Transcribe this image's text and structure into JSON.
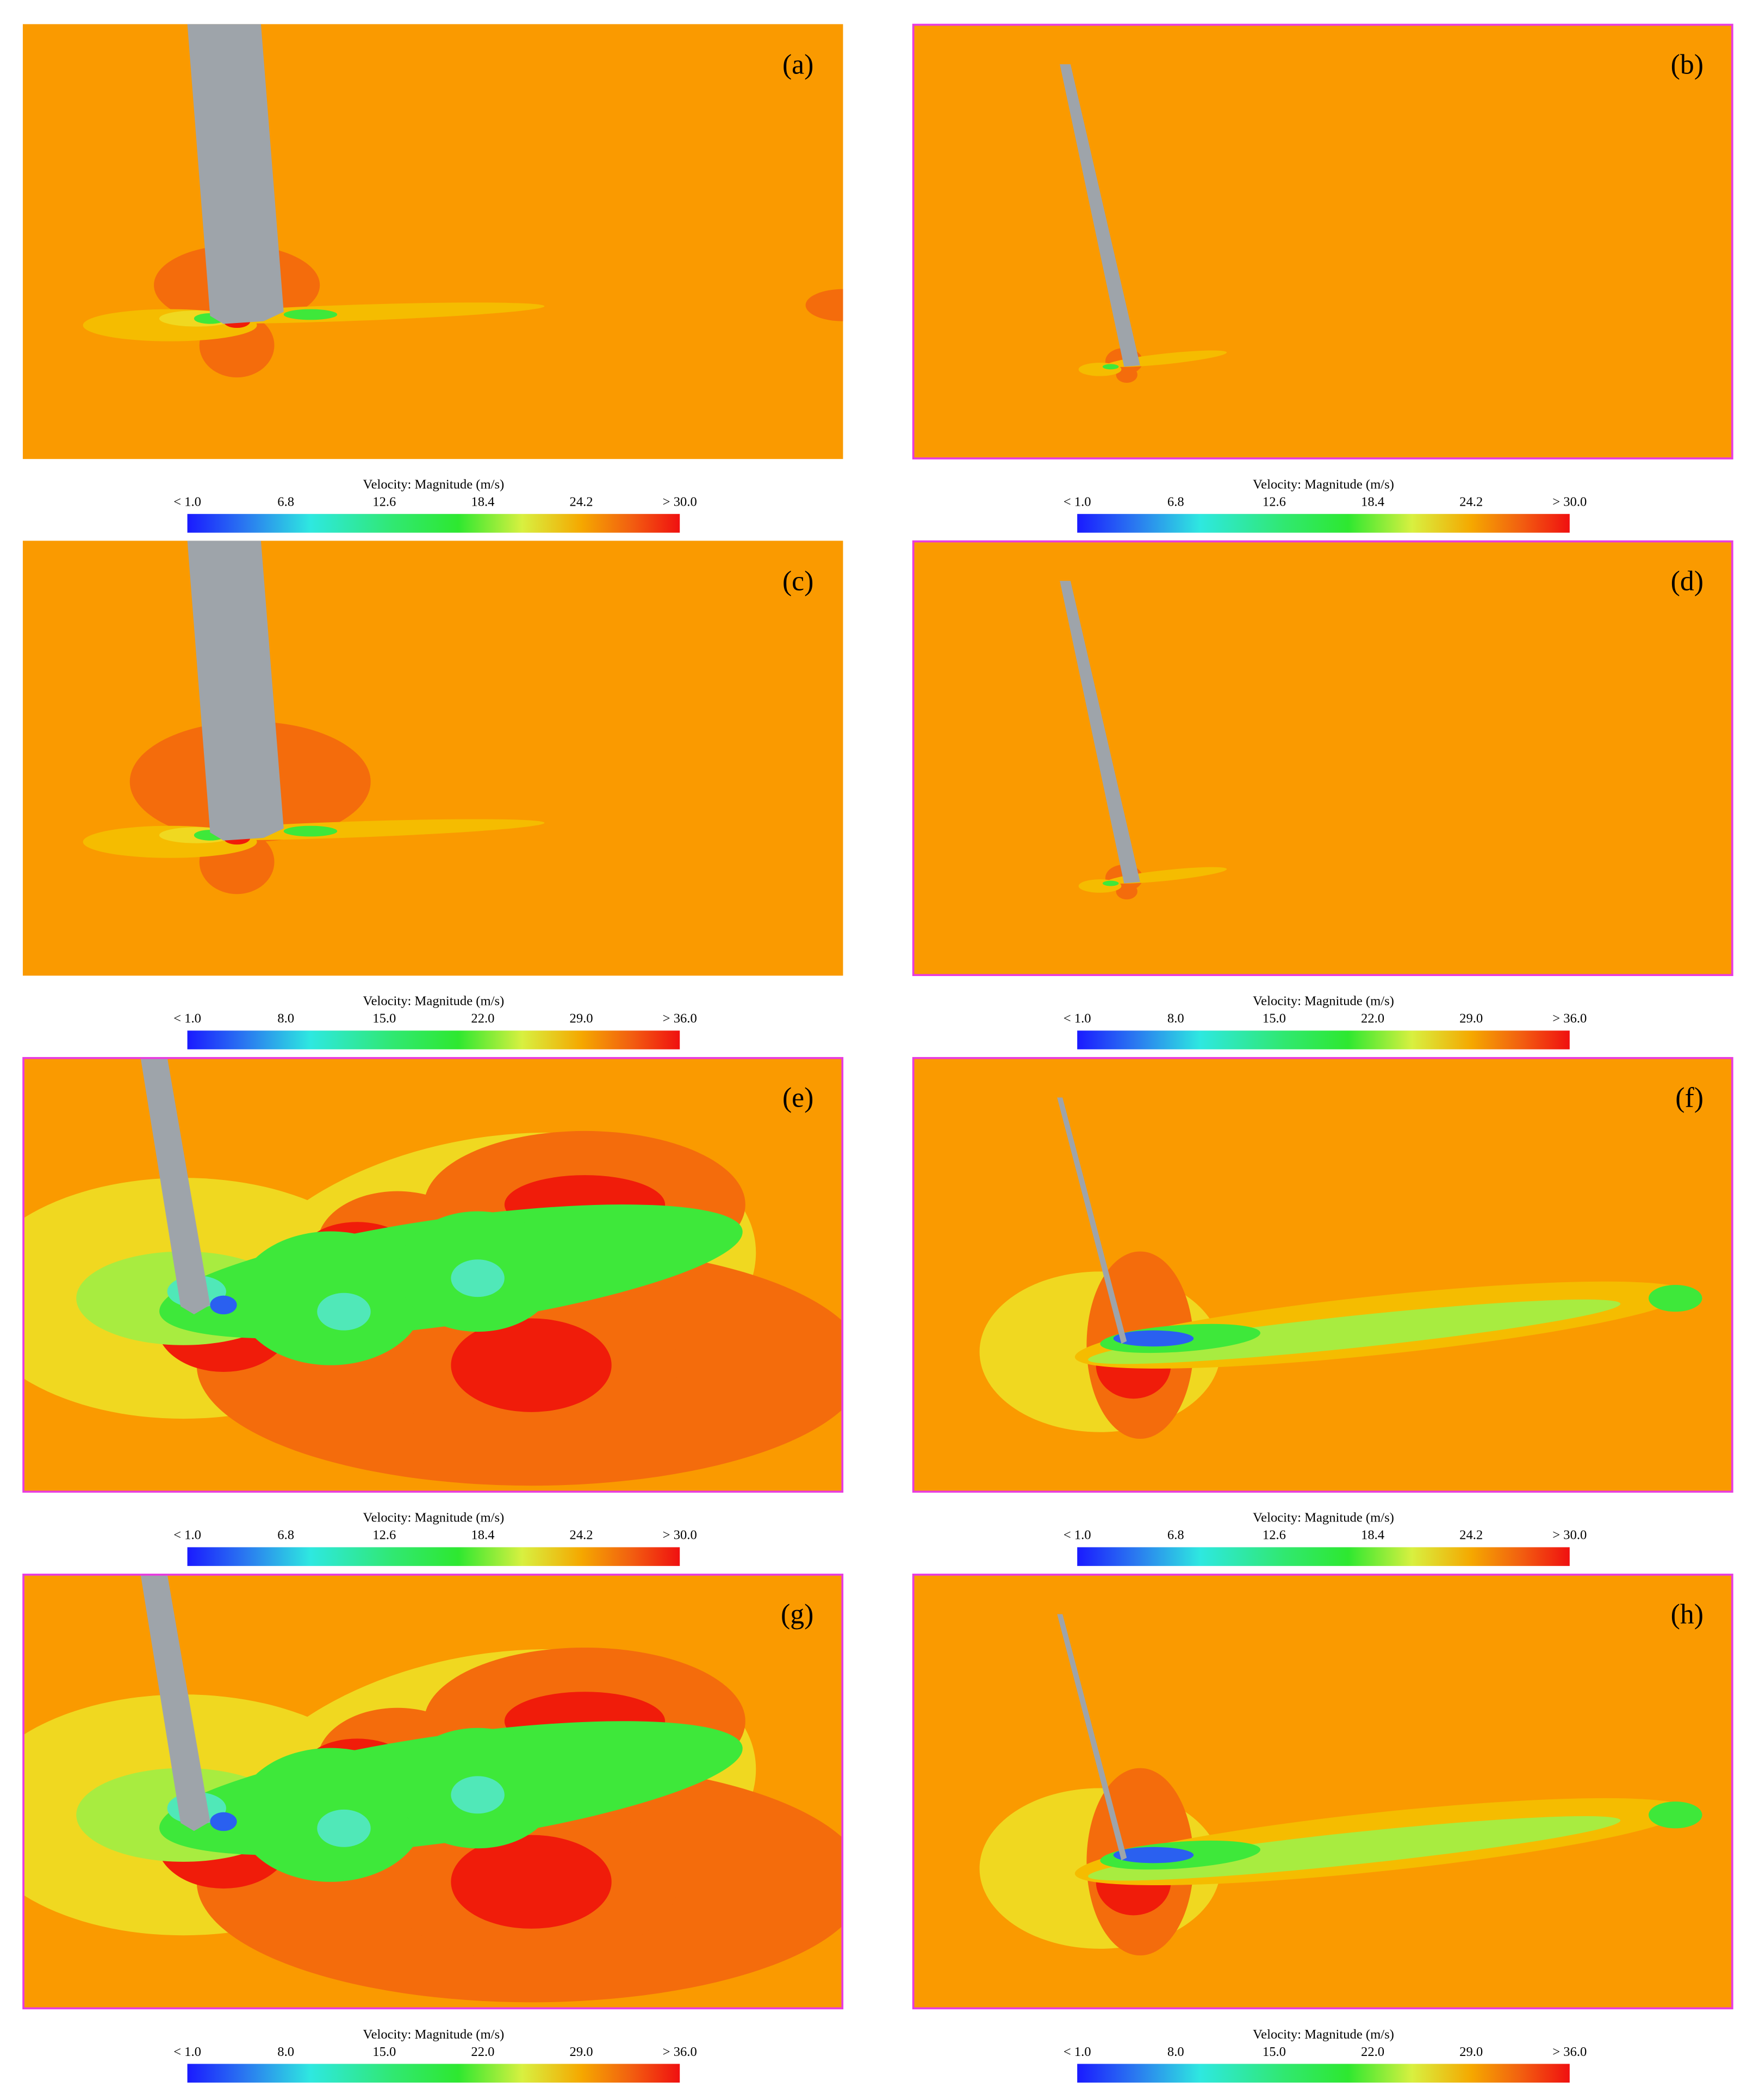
{
  "panels": [
    {
      "label": "(a)",
      "colorbar": {
        "title": "Velocity: Magnitude (m/s)",
        "ticks": [
          "< 1.0",
          "6.8",
          "12.6",
          "18.4",
          "24.2",
          "> 30.0"
        ]
      }
    },
    {
      "label": "(b)",
      "colorbar": {
        "title": "Velocity: Magnitude (m/s)",
        "ticks": [
          "< 1.0",
          "6.8",
          "12.6",
          "18.4",
          "24.2",
          "> 30.0"
        ]
      }
    },
    {
      "label": "(c)",
      "colorbar": {
        "title": "Velocity: Magnitude (m/s)",
        "ticks": [
          "< 1.0",
          "8.0",
          "15.0",
          "22.0",
          "29.0",
          "> 36.0"
        ]
      }
    },
    {
      "label": "(d)",
      "colorbar": {
        "title": "Velocity: Magnitude (m/s)",
        "ticks": [
          "< 1.0",
          "8.0",
          "15.0",
          "22.0",
          "29.0",
          "> 36.0"
        ]
      }
    },
    {
      "label": "(e)",
      "colorbar": {
        "title": "Velocity: Magnitude (m/s)",
        "ticks": [
          "< 1.0",
          "6.8",
          "12.6",
          "18.4",
          "24.2",
          "> 30.0"
        ]
      }
    },
    {
      "label": "(f)",
      "colorbar": {
        "title": "Velocity: Magnitude (m/s)",
        "ticks": [
          "< 1.0",
          "6.8",
          "12.6",
          "18.4",
          "24.2",
          "> 30.0"
        ]
      }
    },
    {
      "label": "(g)",
      "colorbar": {
        "title": "Velocity: Magnitude (m/s)",
        "ticks": [
          "< 1.0",
          "8.0",
          "15.0",
          "22.0",
          "29.0",
          "> 36.0"
        ]
      }
    },
    {
      "label": "(h)",
      "colorbar": {
        "title": "Velocity: Magnitude (m/s)",
        "ticks": [
          "< 1.0",
          "8.0",
          "15.0",
          "22.0",
          "29.0",
          "> 36.0"
        ]
      }
    }
  ]
}
